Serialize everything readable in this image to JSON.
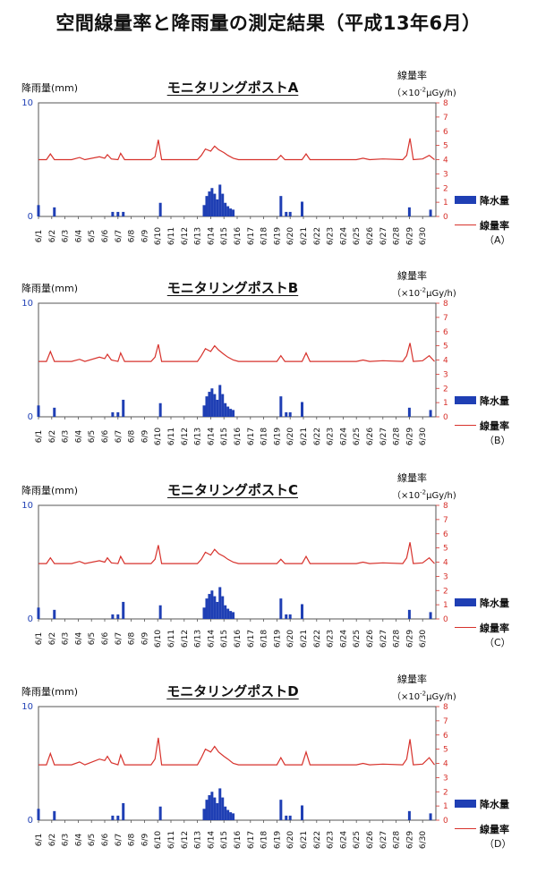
{
  "page": {
    "title": "空間線量率と降雨量の測定結果（平成13年6月）"
  },
  "chart_data": [
    {
      "type": "bar+line",
      "title": "モニタリングポストA",
      "ylabel": "降雨量(mm)",
      "y2label": "線量率",
      "y2unit": "（×10",
      "y2unit_exp": "-2",
      "y2unit_tail": "μGy/h)",
      "ylim": [
        0,
        10
      ],
      "y2lim": [
        0,
        8
      ],
      "y_ticks": [
        0,
        10
      ],
      "y2_ticks": [
        0,
        1,
        2,
        3,
        4,
        5,
        6,
        7,
        8
      ],
      "categories": [
        "6/1",
        "6/2",
        "6/3",
        "6/4",
        "6/5",
        "6/6",
        "6/7",
        "6/8",
        "6/9",
        "6/10",
        "6/11",
        "6/12",
        "6/13",
        "6/14",
        "6/15",
        "6/16",
        "6/17",
        "6/18",
        "6/19",
        "6/20",
        "6/21",
        "6/22",
        "6/23",
        "6/24",
        "6/25",
        "6/26",
        "6/27",
        "6/28",
        "6/29",
        "6/30"
      ],
      "legend": {
        "rain": "降水量",
        "dose": "線量率",
        "post": "（A）"
      },
      "rain": [
        [
          1.0,
          1.0
        ],
        [
          2.2,
          0.8
        ],
        [
          6.6,
          0.4
        ],
        [
          7.0,
          0.4
        ],
        [
          7.4,
          0.4
        ],
        [
          10.2,
          1.2
        ],
        [
          13.5,
          1.0
        ],
        [
          13.7,
          1.8
        ],
        [
          13.9,
          2.2
        ],
        [
          14.1,
          2.5
        ],
        [
          14.3,
          2.0
        ],
        [
          14.5,
          1.5
        ],
        [
          14.7,
          2.8
        ],
        [
          14.9,
          2.0
        ],
        [
          15.1,
          1.2
        ],
        [
          15.3,
          0.9
        ],
        [
          15.5,
          0.7
        ],
        [
          15.7,
          0.6
        ],
        [
          19.3,
          1.8
        ],
        [
          19.7,
          0.4
        ],
        [
          20.0,
          0.4
        ],
        [
          20.9,
          1.3
        ],
        [
          29.0,
          0.8
        ],
        [
          30.6,
          0.6
        ]
      ],
      "dose": [
        [
          1.0,
          4.0
        ],
        [
          1.6,
          4.0
        ],
        [
          1.9,
          4.4
        ],
        [
          2.2,
          4.0
        ],
        [
          3.5,
          4.0
        ],
        [
          4.1,
          4.15
        ],
        [
          4.5,
          4.0
        ],
        [
          5.6,
          4.2
        ],
        [
          6.0,
          4.1
        ],
        [
          6.2,
          4.35
        ],
        [
          6.5,
          4.05
        ],
        [
          7.0,
          4.0
        ],
        [
          7.2,
          4.45
        ],
        [
          7.5,
          4.0
        ],
        [
          9.5,
          4.0
        ],
        [
          9.8,
          4.2
        ],
        [
          10.05,
          5.4
        ],
        [
          10.3,
          4.0
        ],
        [
          13.0,
          4.0
        ],
        [
          13.3,
          4.3
        ],
        [
          13.6,
          4.75
        ],
        [
          14.0,
          4.6
        ],
        [
          14.3,
          4.95
        ],
        [
          14.6,
          4.7
        ],
        [
          15.0,
          4.5
        ],
        [
          15.3,
          4.3
        ],
        [
          15.7,
          4.1
        ],
        [
          16.1,
          4.0
        ],
        [
          19.0,
          4.0
        ],
        [
          19.3,
          4.3
        ],
        [
          19.6,
          4.0
        ],
        [
          20.9,
          4.0
        ],
        [
          21.2,
          4.4
        ],
        [
          21.5,
          4.0
        ],
        [
          25.0,
          4.0
        ],
        [
          25.5,
          4.1
        ],
        [
          26.0,
          4.0
        ],
        [
          27.0,
          4.05
        ],
        [
          28.5,
          4.0
        ],
        [
          28.8,
          4.3
        ],
        [
          29.05,
          5.5
        ],
        [
          29.3,
          4.0
        ],
        [
          30.0,
          4.05
        ],
        [
          30.5,
          4.3
        ],
        [
          30.9,
          4.0
        ]
      ]
    },
    {
      "type": "bar+line",
      "title": "モニタリングポストB",
      "ylabel": "降雨量(mm)",
      "y2label": "線量率",
      "y2unit": "（×10",
      "y2unit_exp": "-2",
      "y2unit_tail": "μGy/h)",
      "ylim": [
        0,
        10
      ],
      "y2lim": [
        0,
        8
      ],
      "y_ticks": [
        0,
        10
      ],
      "y2_ticks": [
        0,
        1,
        2,
        3,
        4,
        5,
        6,
        7,
        8
      ],
      "categories": [
        "6/1",
        "6/2",
        "6/3",
        "6/4",
        "6/5",
        "6/6",
        "6/7",
        "6/8",
        "6/9",
        "6/10",
        "6/11",
        "6/12",
        "6/13",
        "6/14",
        "6/15",
        "6/16",
        "6/17",
        "6/18",
        "6/19",
        "6/20",
        "6/21",
        "6/22",
        "6/23",
        "6/24",
        "6/25",
        "6/26",
        "6/27",
        "6/28",
        "6/29",
        "6/30"
      ],
      "legend": {
        "rain": "降水量",
        "dose": "線量率",
        "post": "（B）"
      },
      "rain": [
        [
          1.0,
          1.0
        ],
        [
          2.2,
          0.8
        ],
        [
          6.6,
          0.4
        ],
        [
          7.0,
          0.4
        ],
        [
          7.4,
          1.5
        ],
        [
          10.2,
          1.2
        ],
        [
          13.5,
          1.0
        ],
        [
          13.7,
          1.8
        ],
        [
          13.9,
          2.2
        ],
        [
          14.1,
          2.5
        ],
        [
          14.3,
          2.0
        ],
        [
          14.5,
          1.5
        ],
        [
          14.7,
          2.8
        ],
        [
          14.9,
          2.0
        ],
        [
          15.1,
          1.2
        ],
        [
          15.3,
          0.9
        ],
        [
          15.5,
          0.7
        ],
        [
          15.7,
          0.6
        ],
        [
          19.3,
          1.8
        ],
        [
          19.7,
          0.4
        ],
        [
          20.0,
          0.4
        ],
        [
          20.9,
          1.3
        ],
        [
          29.0,
          0.8
        ],
        [
          30.6,
          0.6
        ]
      ],
      "dose": [
        [
          1.0,
          3.9
        ],
        [
          1.6,
          3.9
        ],
        [
          1.9,
          4.6
        ],
        [
          2.2,
          3.9
        ],
        [
          3.5,
          3.9
        ],
        [
          4.1,
          4.05
        ],
        [
          4.5,
          3.9
        ],
        [
          5.6,
          4.2
        ],
        [
          6.0,
          4.1
        ],
        [
          6.2,
          4.4
        ],
        [
          6.5,
          4.0
        ],
        [
          7.0,
          3.9
        ],
        [
          7.2,
          4.5
        ],
        [
          7.5,
          3.9
        ],
        [
          9.5,
          3.9
        ],
        [
          9.8,
          4.2
        ],
        [
          10.05,
          5.1
        ],
        [
          10.3,
          3.9
        ],
        [
          13.0,
          3.9
        ],
        [
          13.3,
          4.3
        ],
        [
          13.6,
          4.8
        ],
        [
          14.0,
          4.6
        ],
        [
          14.3,
          5.0
        ],
        [
          14.6,
          4.7
        ],
        [
          15.0,
          4.4
        ],
        [
          15.3,
          4.2
        ],
        [
          15.7,
          4.0
        ],
        [
          16.1,
          3.9
        ],
        [
          19.0,
          3.9
        ],
        [
          19.3,
          4.3
        ],
        [
          19.6,
          3.9
        ],
        [
          20.9,
          3.9
        ],
        [
          21.2,
          4.5
        ],
        [
          21.5,
          3.9
        ],
        [
          25.0,
          3.9
        ],
        [
          25.5,
          4.0
        ],
        [
          26.0,
          3.9
        ],
        [
          27.0,
          3.95
        ],
        [
          28.5,
          3.9
        ],
        [
          28.8,
          4.3
        ],
        [
          29.05,
          5.2
        ],
        [
          29.3,
          3.9
        ],
        [
          30.0,
          3.95
        ],
        [
          30.5,
          4.3
        ],
        [
          30.9,
          3.9
        ]
      ]
    },
    {
      "type": "bar+line",
      "title": "モニタリングポストC",
      "ylabel": "降雨量(mm)",
      "y2label": "線量率",
      "y2unit": "（×10",
      "y2unit_exp": "-2",
      "y2unit_tail": "μGy/h)",
      "ylim": [
        0,
        10
      ],
      "y2lim": [
        0,
        8
      ],
      "y_ticks": [
        0,
        10
      ],
      "y2_ticks": [
        0,
        1,
        2,
        3,
        4,
        5,
        6,
        7,
        8
      ],
      "categories": [
        "6/1",
        "6/2",
        "6/3",
        "6/4",
        "6/5",
        "6/6",
        "6/7",
        "6/8",
        "6/9",
        "6/10",
        "6/11",
        "6/12",
        "6/13",
        "6/14",
        "6/15",
        "6/16",
        "6/17",
        "6/18",
        "6/19",
        "6/20",
        "6/21",
        "6/22",
        "6/23",
        "6/24",
        "6/25",
        "6/26",
        "6/27",
        "6/28",
        "6/29",
        "6/30"
      ],
      "legend": {
        "rain": "降水量",
        "dose": "線量率",
        "post": "（C）"
      },
      "rain": [
        [
          1.0,
          1.0
        ],
        [
          2.2,
          0.8
        ],
        [
          6.6,
          0.4
        ],
        [
          7.0,
          0.4
        ],
        [
          7.4,
          1.5
        ],
        [
          10.2,
          1.2
        ],
        [
          13.5,
          1.0
        ],
        [
          13.7,
          1.8
        ],
        [
          13.9,
          2.2
        ],
        [
          14.1,
          2.5
        ],
        [
          14.3,
          2.0
        ],
        [
          14.5,
          1.5
        ],
        [
          14.7,
          2.8
        ],
        [
          14.9,
          2.0
        ],
        [
          15.1,
          1.2
        ],
        [
          15.3,
          0.9
        ],
        [
          15.5,
          0.7
        ],
        [
          15.7,
          0.6
        ],
        [
          19.3,
          1.8
        ],
        [
          19.7,
          0.4
        ],
        [
          20.0,
          0.4
        ],
        [
          20.9,
          1.3
        ],
        [
          29.0,
          0.8
        ],
        [
          30.6,
          0.6
        ]
      ],
      "dose": [
        [
          1.0,
          3.9
        ],
        [
          1.6,
          3.9
        ],
        [
          1.9,
          4.3
        ],
        [
          2.2,
          3.9
        ],
        [
          3.5,
          3.9
        ],
        [
          4.1,
          4.05
        ],
        [
          4.5,
          3.9
        ],
        [
          5.6,
          4.1
        ],
        [
          6.0,
          4.0
        ],
        [
          6.2,
          4.3
        ],
        [
          6.5,
          3.95
        ],
        [
          7.0,
          3.9
        ],
        [
          7.2,
          4.4
        ],
        [
          7.5,
          3.9
        ],
        [
          9.5,
          3.9
        ],
        [
          9.8,
          4.2
        ],
        [
          10.05,
          5.2
        ],
        [
          10.3,
          3.9
        ],
        [
          13.0,
          3.9
        ],
        [
          13.3,
          4.2
        ],
        [
          13.6,
          4.7
        ],
        [
          14.0,
          4.5
        ],
        [
          14.3,
          4.9
        ],
        [
          14.6,
          4.6
        ],
        [
          15.0,
          4.4
        ],
        [
          15.3,
          4.2
        ],
        [
          15.7,
          4.0
        ],
        [
          16.1,
          3.9
        ],
        [
          19.0,
          3.9
        ],
        [
          19.3,
          4.2
        ],
        [
          19.6,
          3.9
        ],
        [
          20.9,
          3.9
        ],
        [
          21.2,
          4.4
        ],
        [
          21.5,
          3.9
        ],
        [
          25.0,
          3.9
        ],
        [
          25.5,
          4.0
        ],
        [
          26.0,
          3.9
        ],
        [
          27.0,
          3.95
        ],
        [
          28.5,
          3.9
        ],
        [
          28.8,
          4.3
        ],
        [
          29.05,
          5.4
        ],
        [
          29.3,
          3.9
        ],
        [
          30.0,
          3.95
        ],
        [
          30.5,
          4.3
        ],
        [
          30.9,
          3.9
        ]
      ]
    },
    {
      "type": "bar+line",
      "title": "モニタリングポストD",
      "ylabel": "降雨量(mm)",
      "y2label": "線量率",
      "y2unit": "（×10",
      "y2unit_exp": "-2",
      "y2unit_tail": "μGy/h)",
      "ylim": [
        0,
        10
      ],
      "y2lim": [
        0,
        8
      ],
      "y_ticks": [
        0,
        10
      ],
      "y2_ticks": [
        0,
        1,
        2,
        3,
        4,
        5,
        6,
        7,
        8
      ],
      "categories": [
        "6/1",
        "6/2",
        "6/3",
        "6/4",
        "6/5",
        "6/6",
        "6/7",
        "6/8",
        "6/9",
        "6/10",
        "6/11",
        "6/12",
        "6/13",
        "6/14",
        "6/15",
        "6/16",
        "6/17",
        "6/18",
        "6/19",
        "6/20",
        "6/21",
        "6/22",
        "6/23",
        "6/24",
        "6/25",
        "6/26",
        "6/27",
        "6/28",
        "6/29",
        "6/30"
      ],
      "legend": {
        "rain": "降水量",
        "dose": "線量率",
        "post": "（D）"
      },
      "rain": [
        [
          1.0,
          1.0
        ],
        [
          2.2,
          0.8
        ],
        [
          6.6,
          0.4
        ],
        [
          7.0,
          0.4
        ],
        [
          7.4,
          1.5
        ],
        [
          10.2,
          1.2
        ],
        [
          13.5,
          1.0
        ],
        [
          13.7,
          1.8
        ],
        [
          13.9,
          2.2
        ],
        [
          14.1,
          2.5
        ],
        [
          14.3,
          2.0
        ],
        [
          14.5,
          1.5
        ],
        [
          14.7,
          2.8
        ],
        [
          14.9,
          2.0
        ],
        [
          15.1,
          1.2
        ],
        [
          15.3,
          0.9
        ],
        [
          15.5,
          0.7
        ],
        [
          15.7,
          0.6
        ],
        [
          19.3,
          1.8
        ],
        [
          19.7,
          0.4
        ],
        [
          20.0,
          0.4
        ],
        [
          20.9,
          1.3
        ],
        [
          29.0,
          0.8
        ],
        [
          30.6,
          0.6
        ]
      ],
      "dose": [
        [
          1.0,
          3.9
        ],
        [
          1.6,
          3.9
        ],
        [
          1.9,
          4.7
        ],
        [
          2.2,
          3.9
        ],
        [
          3.5,
          3.9
        ],
        [
          4.1,
          4.1
        ],
        [
          4.5,
          3.9
        ],
        [
          5.6,
          4.3
        ],
        [
          6.0,
          4.2
        ],
        [
          6.2,
          4.5
        ],
        [
          6.5,
          4.05
        ],
        [
          7.0,
          3.9
        ],
        [
          7.2,
          4.6
        ],
        [
          7.5,
          3.9
        ],
        [
          9.5,
          3.9
        ],
        [
          9.8,
          4.3
        ],
        [
          10.05,
          5.8
        ],
        [
          10.3,
          3.9
        ],
        [
          13.0,
          3.9
        ],
        [
          13.3,
          4.4
        ],
        [
          13.6,
          5.0
        ],
        [
          14.0,
          4.8
        ],
        [
          14.3,
          5.2
        ],
        [
          14.6,
          4.8
        ],
        [
          15.0,
          4.5
        ],
        [
          15.3,
          4.3
        ],
        [
          15.7,
          4.0
        ],
        [
          16.1,
          3.9
        ],
        [
          19.0,
          3.9
        ],
        [
          19.3,
          4.4
        ],
        [
          19.6,
          3.9
        ],
        [
          20.9,
          3.9
        ],
        [
          21.2,
          4.8
        ],
        [
          21.5,
          3.9
        ],
        [
          25.0,
          3.9
        ],
        [
          25.5,
          4.0
        ],
        [
          26.0,
          3.9
        ],
        [
          27.0,
          3.95
        ],
        [
          28.5,
          3.9
        ],
        [
          28.8,
          4.3
        ],
        [
          29.05,
          5.7
        ],
        [
          29.3,
          3.9
        ],
        [
          30.0,
          3.95
        ],
        [
          30.5,
          4.4
        ],
        [
          30.9,
          3.9
        ]
      ]
    }
  ]
}
